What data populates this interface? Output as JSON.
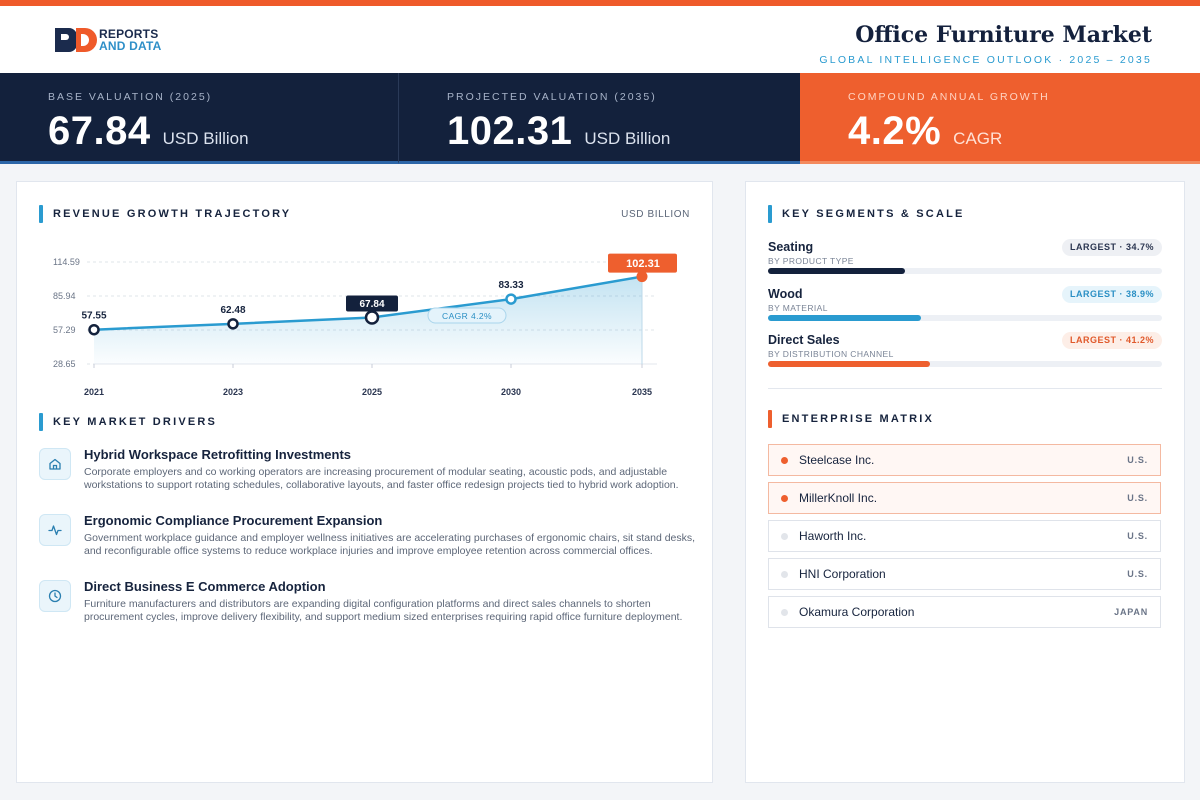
{
  "brand": {
    "line1": "REPORTS",
    "line2": "AND DATA"
  },
  "header": {
    "title": "Office Furniture Market",
    "subtitle": "GLOBAL INTELLIGENCE OUTLOOK  ·  2025 – 2035"
  },
  "kpis": [
    {
      "label": "BASE VALUATION (2025)",
      "value": "67.84",
      "unit": "USD Billion"
    },
    {
      "label": "PROJECTED VALUATION (2035)",
      "value": "102.31",
      "unit": "USD Billion"
    },
    {
      "label": "COMPOUND ANNUAL GROWTH",
      "value": "4.2%",
      "unit": "CAGR"
    }
  ],
  "growth": {
    "section_title": "REVENUE GROWTH TRAJECTORY",
    "unit_label": "USD BILLION"
  },
  "chart_data": {
    "type": "area",
    "x": [
      "2021",
      "2023",
      "2025",
      "2030",
      "2035"
    ],
    "values": [
      57.55,
      62.48,
      67.84,
      83.33,
      102.31
    ],
    "data_labels": [
      "57.55",
      "62.48",
      "67.84",
      "83.33",
      "102.31"
    ],
    "y_ticks": [
      "114.59",
      "85.94",
      "57.29",
      "28.65"
    ],
    "y_tick_values": [
      114.59,
      85.94,
      57.29,
      28.65
    ],
    "ylim": [
      28.65,
      114.59
    ],
    "annotation": "CAGR 4.2%",
    "grid": true,
    "colors": {
      "line": "#2a9bd0",
      "highlight": "#13213c",
      "end": "#ee5f2e"
    }
  },
  "drivers": {
    "section_title": "KEY MARKET DRIVERS",
    "items": [
      {
        "icon": "home-icon",
        "title": "Hybrid Workspace Retrofitting Investments",
        "desc": "Corporate employers and co working operators are increasing procurement of modular seating, acoustic pods, and adjustable workstations to support rotating schedules, collaborative layouts, and faster office redesign projects tied to hybrid work adoption."
      },
      {
        "icon": "pulse-icon",
        "title": "Ergonomic Compliance Procurement Expansion",
        "desc": "Government workplace guidance and employer wellness initiatives are accelerating purchases of ergonomic chairs, sit stand desks, and reconfigurable office systems to reduce workplace injuries and improve employee retention across commercial offices."
      },
      {
        "icon": "clock-icon",
        "title": "Direct Business E Commerce Adoption",
        "desc": "Furniture manufacturers and distributors are expanding digital configuration platforms and direct sales channels to shorten procurement cycles, improve delivery flexibility, and support medium sized enterprises requiring rapid office furniture deployment."
      }
    ]
  },
  "segments": {
    "section_title": "KEY SEGMENTS & SCALE",
    "items": [
      {
        "name": "Seating",
        "sub": "BY PRODUCT TYPE",
        "badge": "LARGEST · 34.7%",
        "share": 34.7,
        "color": "#13213c",
        "badge_bg": "#eef0f4",
        "badge_fg": "#2a3550"
      },
      {
        "name": "Wood",
        "sub": "BY MATERIAL",
        "badge": "LARGEST · 38.9%",
        "share": 38.9,
        "color": "#2a9bd0",
        "badge_bg": "#e6f4fb",
        "badge_fg": "#2a8fc4"
      },
      {
        "name": "Direct Sales",
        "sub": "BY DISTRIBUTION CHANNEL",
        "badge": "LARGEST · 41.2%",
        "share": 41.2,
        "color": "#ee5f2e",
        "badge_bg": "#fdeee7",
        "badge_fg": "#e0592b"
      }
    ]
  },
  "matrix": {
    "section_title": "ENTERPRISE MATRIX",
    "rows": [
      {
        "name": "Steelcase Inc.",
        "country": "U.S.",
        "highlight": true
      },
      {
        "name": "MillerKnoll Inc.",
        "country": "U.S.",
        "highlight": true
      },
      {
        "name": "Haworth Inc.",
        "country": "U.S.",
        "highlight": false
      },
      {
        "name": "HNI Corporation",
        "country": "U.S.",
        "highlight": false
      },
      {
        "name": "Okamura Corporation",
        "country": "JAPAN",
        "highlight": false
      }
    ]
  }
}
